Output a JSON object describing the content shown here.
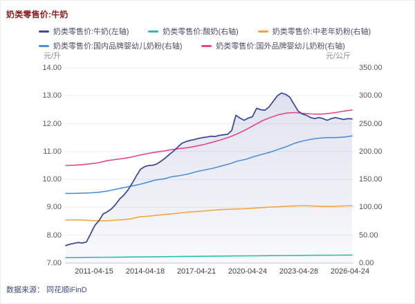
{
  "page": {
    "title": "奶类零售价:牛奶",
    "source": "数据来源： 同花顺iFinD"
  },
  "chart_data": {
    "type": "line",
    "title": "奶类零售价:牛奶",
    "grid": true,
    "legend_position": "top",
    "left_axis": {
      "unit": "元/升",
      "min": 7.0,
      "max": 14.0,
      "ticks": [
        "14.00",
        "13.00",
        "12.00",
        "11.00",
        "10.00",
        "9.00",
        "8.00",
        "7.00"
      ]
    },
    "right_axis": {
      "unit": "元/公斤",
      "min": 0.0,
      "max": 350.0,
      "ticks": [
        "350.00",
        "300.00",
        "250.00",
        "200.00",
        "150.00",
        "100.00",
        "50.00",
        "0.00"
      ]
    },
    "x_axis": {
      "labels": [
        "2011-04-15",
        "2014-04-18",
        "2017-04-21",
        "2020-04-24",
        "2023-04-28",
        "2026-04-24"
      ],
      "range_note": "evenly spaced samples from ~2009-08 to 2026-04"
    },
    "legend_rows": [
      [
        0,
        1,
        2
      ],
      [
        3,
        4
      ]
    ],
    "series": [
      {
        "name": "奶类零售价:牛奶(左轴)",
        "axis": "left",
        "color": "#3c4b9b",
        "area": true,
        "values": [
          7.63,
          7.68,
          7.71,
          7.74,
          7.72,
          7.76,
          8.05,
          8.35,
          8.52,
          8.76,
          8.84,
          8.94,
          9.1,
          9.3,
          9.44,
          9.62,
          9.86,
          10.12,
          10.36,
          10.46,
          10.5,
          10.51,
          10.56,
          10.66,
          10.77,
          10.9,
          11.02,
          11.16,
          11.3,
          11.36,
          11.4,
          11.43,
          11.47,
          11.5,
          11.52,
          11.55,
          11.54,
          11.58,
          11.6,
          11.62,
          11.75,
          12.3,
          12.2,
          12.12,
          12.2,
          12.25,
          12.55,
          12.5,
          12.48,
          12.6,
          12.8,
          13.0,
          13.1,
          13.05,
          12.95,
          12.7,
          12.45,
          12.35,
          12.3,
          12.22,
          12.18,
          12.22,
          12.18,
          12.12,
          12.18,
          12.22,
          12.18,
          12.15,
          12.18,
          12.17
        ]
      },
      {
        "name": "奶类零售价:酸奶(右轴)",
        "axis": "right",
        "color": "#2abfa8",
        "area": false,
        "values": [
          10.0,
          10.1,
          10.2,
          10.3,
          10.4,
          10.5,
          10.7,
          10.8,
          11.0,
          11.1,
          11.3,
          11.4,
          11.6,
          11.7,
          11.9,
          12.0,
          12.2,
          12.3,
          12.5,
          12.6,
          12.8,
          12.9,
          13.0,
          13.2,
          13.3,
          13.4,
          13.5,
          13.7,
          13.8,
          13.9,
          14.0,
          14.1,
          14.2,
          14.3,
          14.4,
          14.5
        ]
      },
      {
        "name": "奶类零售价:中老年奶粉(右轴)",
        "axis": "right",
        "color": "#f5a43f",
        "area": false,
        "values": [
          77.5,
          77.5,
          77.3,
          76.5,
          75.8,
          76.0,
          77.0,
          78.0,
          79.5,
          83.0,
          84.0,
          85.5,
          87.0,
          88.5,
          90.0,
          91.5,
          92.5,
          93.5,
          95.0,
          96.0,
          96.5,
          97.0,
          97.5,
          98.5,
          99.5,
          100.5,
          101.0,
          102.0,
          102.5,
          103.0,
          102.5,
          102.0,
          101.5,
          102.0,
          102.5,
          103.0
        ]
      },
      {
        "name": "奶类零售价:国内品牌婴幼儿奶粉(右轴)",
        "axis": "right",
        "color": "#4b90d8",
        "area": false,
        "values": [
          125,
          125,
          125.5,
          126,
          127,
          129,
          132,
          135,
          138,
          141,
          145,
          149,
          151,
          155,
          157,
          160,
          164,
          167,
          170,
          174,
          178,
          183,
          186,
          191,
          195,
          199,
          204,
          209,
          215,
          219,
          222,
          224,
          225,
          225,
          226,
          228
        ]
      },
      {
        "name": "奶类零售价:国外品牌婴幼儿奶粉(右轴)",
        "axis": "right",
        "color": "#e64586",
        "area": false,
        "values": [
          175,
          175.5,
          176.5,
          178,
          180,
          183.5,
          185.5,
          187.5,
          190,
          193.5,
          196.5,
          199,
          201,
          203.5,
          205.5,
          207,
          210,
          213,
          217,
          221,
          226,
          232,
          239,
          247,
          255,
          261,
          266,
          269,
          270,
          268.5,
          267.5,
          267,
          268,
          270,
          272.5,
          274.5
        ]
      }
    ],
    "colors": {
      "title": "#8b1a1a",
      "legend_text": "#4c4c66",
      "tick_text": "#55555f",
      "x_label_text": "#3c3c46",
      "source_text": "#3e4c7d",
      "gridline": "#ececf2",
      "axis_line": "#c9cad1",
      "area_fill_top": "rgba(60,75,155,0.16)",
      "area_fill_bottom": "rgba(60,75,155,0.03)"
    }
  }
}
